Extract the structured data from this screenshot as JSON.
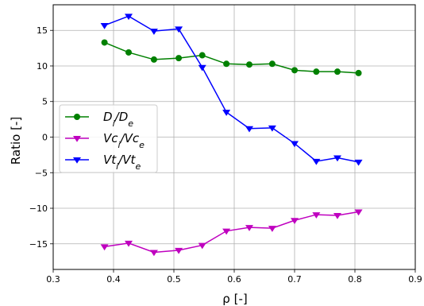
{
  "chart_data": {
    "type": "line",
    "xlabel": "ρ [-]",
    "ylabel": "Ratio [-]",
    "xlim": [
      0.3,
      0.9
    ],
    "ylim": [
      -18.6,
      18.6
    ],
    "xticks": [
      0.3,
      0.4,
      0.5,
      0.6,
      0.7,
      0.8,
      0.9
    ],
    "yticks": [
      -15,
      -10,
      -5,
      0,
      5,
      10,
      15
    ],
    "grid": true,
    "legend_position": "center-left",
    "x": [
      0.385,
      0.425,
      0.467,
      0.508,
      0.547,
      0.587,
      0.625,
      0.663,
      0.7,
      0.736,
      0.771,
      0.806
    ],
    "series": [
      {
        "name": "Di/De",
        "name_base_1": "D",
        "name_sub_1": "i",
        "name_mid": "/",
        "name_base_2": "D",
        "name_sub_2": "e",
        "color": "#008000",
        "marker": "circle",
        "values": [
          13.3,
          11.9,
          10.9,
          11.1,
          11.5,
          10.3,
          10.2,
          10.3,
          9.4,
          9.2,
          9.2,
          9.0
        ]
      },
      {
        "name": "Vci/Vce",
        "name_base_1": "Vc",
        "name_sub_1": "i",
        "name_mid": "/",
        "name_base_2": "Vc",
        "name_sub_2": "e",
        "color": "#bf00bf",
        "marker": "triangle-down",
        "values": [
          -15.4,
          -14.9,
          -16.2,
          -15.9,
          -15.2,
          -13.2,
          -12.7,
          -12.8,
          -11.7,
          -10.9,
          -11.0,
          -10.5
        ]
      },
      {
        "name": "Vti/Vte",
        "name_base_1": "Vt",
        "name_sub_1": "i",
        "name_mid": "/",
        "name_base_2": "Vt",
        "name_sub_2": "e",
        "color": "#0000ff",
        "marker": "triangle-down",
        "values": [
          15.7,
          17.0,
          14.9,
          15.2,
          9.8,
          3.5,
          1.2,
          1.3,
          -0.9,
          -3.4,
          -2.9,
          -3.5
        ]
      }
    ]
  }
}
